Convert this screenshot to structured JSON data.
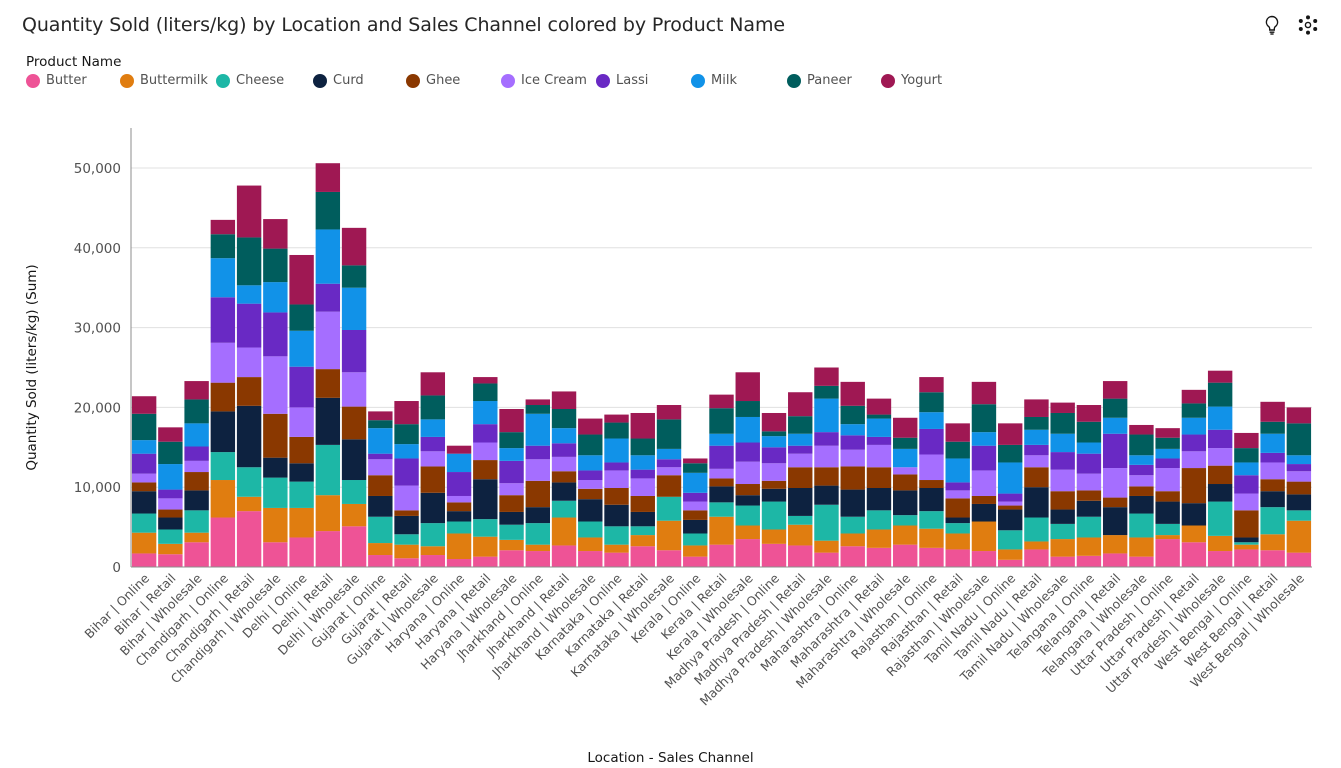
{
  "title": "Quantity Sold (liters/kg) by Location and Sales Channel colored by Product Name",
  "toolbar": {
    "insights_icon": "lightbulb-icon",
    "settings_icon": "network-settings-icon"
  },
  "legend": {
    "title": "Product Name",
    "items": [
      {
        "name": "Butter",
        "color": "#ee5396"
      },
      {
        "name": "Buttermilk",
        "color": "#e07d10"
      },
      {
        "name": "Cheese",
        "color": "#1db7a6"
      },
      {
        "name": "Curd",
        "color": "#0d2240"
      },
      {
        "name": "Ghee",
        "color": "#8a3800"
      },
      {
        "name": "Ice Cream",
        "color": "#a56eff"
      },
      {
        "name": "Lassi",
        "color": "#6929c4"
      },
      {
        "name": "Milk",
        "color": "#1192e8"
      },
      {
        "name": "Paneer",
        "color": "#005d5d"
      },
      {
        "name": "Yogurt",
        "color": "#9f1853"
      }
    ]
  },
  "chart_data": {
    "type": "bar",
    "stacked": true,
    "xlabel": "Location - Sales Channel",
    "ylabel": "Quantity Sold (liters/kg) (Sum)",
    "ylim": [
      0,
      55000
    ],
    "yticks": [
      0,
      10000,
      20000,
      30000,
      40000,
      50000
    ],
    "ytick_labels": [
      "0",
      "10,000",
      "20,000",
      "30,000",
      "40,000",
      "50,000"
    ],
    "grid": true,
    "legend_position": "top-left",
    "categories": [
      "Bihar | Online",
      "Bihar | Retail",
      "Bihar | Wholesale",
      "Chandigarh | Online",
      "Chandigarh | Retail",
      "Chandigarh | Wholesale",
      "Delhi | Online",
      "Delhi | Retail",
      "Delhi | Wholesale",
      "Gujarat | Online",
      "Gujarat | Retail",
      "Gujarat | Wholesale",
      "Haryana | Online",
      "Haryana | Retail",
      "Haryana | Wholesale",
      "Jharkhand | Online",
      "Jharkhand | Retail",
      "Jharkhand | Wholesale",
      "Karnataka | Online",
      "Karnataka | Retail",
      "Karnataka | Wholesale",
      "Kerala | Online",
      "Kerala | Retail",
      "Kerala | Wholesale",
      "Madhya Pradesh | Online",
      "Madhya Pradesh | Retail",
      "Madhya Pradesh | Wholesale",
      "Maharashtra | Online",
      "Maharashtra | Retail",
      "Maharashtra | Wholesale",
      "Rajasthan | Online",
      "Rajasthan | Retail",
      "Rajasthan | Wholesale",
      "Tamil Nadu | Online",
      "Tamil Nadu | Retail",
      "Tamil Nadu | Wholesale",
      "Telangana | Online",
      "Telangana | Retail",
      "Telangana | Wholesale",
      "Uttar Pradesh | Online",
      "Uttar Pradesh | Retail",
      "Uttar Pradesh | Wholesale",
      "West Bengal | Online",
      "West Bengal | Retail",
      "West Bengal | Wholesale"
    ],
    "series": [
      {
        "name": "Butter",
        "values": [
          1700,
          1600,
          3100,
          6200,
          7000,
          3100,
          3700,
          4500,
          5100,
          1500,
          1100,
          1500,
          1000,
          1300,
          2100,
          2000,
          2700,
          2000,
          1800,
          2600,
          2100,
          1300,
          2800,
          3500,
          2900,
          2700,
          1800,
          2600,
          2400,
          2800,
          2400,
          2200,
          2000,
          900,
          2200,
          1300,
          1400,
          1700,
          1300,
          3500,
          3100,
          2000,
          2200,
          2100,
          1800
        ]
      },
      {
        "name": "Buttermilk",
        "values": [
          2600,
          1300,
          1200,
          4700,
          1800,
          4300,
          3700,
          4500,
          2800,
          1500,
          1700,
          1100,
          3200,
          2500,
          1300,
          800,
          3500,
          1700,
          1000,
          1400,
          3700,
          1400,
          3500,
          1700,
          1800,
          2600,
          1500,
          1600,
          2300,
          2400,
          2400,
          2000,
          3700,
          1300,
          1000,
          2200,
          2300,
          2300,
          2400,
          500,
          2100,
          1900,
          600,
          2000,
          4000
        ]
      },
      {
        "name": "Cheese",
        "values": [
          2400,
          1800,
          2800,
          3500,
          3700,
          3800,
          3300,
          6300,
          3000,
          3300,
          1300,
          2900,
          1500,
          2200,
          1900,
          2700,
          2100,
          2000,
          2300,
          1100,
          3000,
          1500,
          1800,
          2500,
          3500,
          1100,
          4500,
          2100,
          2400,
          1300,
          2200,
          1300,
          0,
          2400,
          3000,
          1900,
          2600,
          0,
          3000,
          1400,
          0,
          4300,
          300,
          3400,
          1300
        ]
      },
      {
        "name": "Curd",
        "values": [
          2800,
          1500,
          2500,
          5100,
          7700,
          2500,
          2300,
          5900,
          5100,
          2600,
          2300,
          3800,
          1300,
          5000,
          1600,
          2000,
          2300,
          2800,
          2700,
          1800,
          0,
          1700,
          2000,
          1300,
          1600,
          3500,
          2400,
          3400,
          2800,
          3100,
          2900,
          700,
          2200,
          2600,
          3800,
          1800,
          2000,
          3500,
          2200,
          2800,
          2800,
          2200,
          600,
          2000,
          2000
        ]
      },
      {
        "name": "Ghee",
        "values": [
          1100,
          1000,
          2300,
          3600,
          3600,
          5500,
          3300,
          3600,
          4100,
          2600,
          700,
          3300,
          1100,
          2400,
          2100,
          3300,
          1400,
          1300,
          2100,
          2000,
          2700,
          1200,
          1000,
          1400,
          1000,
          2600,
          2300,
          2900,
          2600,
          2000,
          1000,
          2400,
          1000,
          500,
          2500,
          2300,
          1300,
          1200,
          1200,
          1300,
          4400,
          2300,
          3400,
          1500,
          1600
        ]
      },
      {
        "name": "Ice Cream",
        "values": [
          1100,
          1400,
          1400,
          5000,
          3700,
          7200,
          3700,
          7200,
          4300,
          2000,
          3100,
          1900,
          800,
          2200,
          1500,
          2700,
          1800,
          1100,
          2200,
          2200,
          1000,
          1100,
          1200,
          2800,
          2200,
          1700,
          2700,
          2100,
          2800,
          900,
          3200,
          1000,
          3200,
          500,
          1500,
          2700,
          2100,
          3700,
          1400,
          2900,
          2100,
          2200,
          2100,
          2100,
          1300
        ]
      },
      {
        "name": "Lassi",
        "values": [
          2500,
          1100,
          1800,
          5700,
          5500,
          5500,
          5100,
          3500,
          5300,
          700,
          3400,
          1800,
          3000,
          2300,
          2800,
          1700,
          1700,
          1200,
          1000,
          1100,
          1000,
          1100,
          2900,
          2400,
          2000,
          1000,
          1700,
          1800,
          1000,
          0,
          3200,
          1000,
          3100,
          1000,
          1300,
          2200,
          2500,
          4300,
          1300,
          1200,
          2100,
          2300,
          2300,
          1200,
          900
        ]
      },
      {
        "name": "Milk",
        "values": [
          1700,
          3200,
          2900,
          4900,
          2300,
          3800,
          4500,
          6800,
          5300,
          3200,
          1800,
          2200,
          2300,
          2900,
          1600,
          4000,
          1900,
          1900,
          3000,
          1800,
          1300,
          2500,
          1500,
          3200,
          1400,
          1500,
          4200,
          1400,
          2300,
          2300,
          2100,
          3000,
          1700,
          3900,
          1900,
          2300,
          1400,
          2000,
          1200,
          1200,
          2100,
          2900,
          1600,
          2400,
          1100
        ]
      },
      {
        "name": "Paneer",
        "values": [
          3300,
          2800,
          3000,
          3000,
          6000,
          4200,
          3300,
          4700,
          2800,
          1000,
          2500,
          3000,
          0,
          2200,
          2000,
          1100,
          2400,
          2600,
          2000,
          2100,
          3700,
          1200,
          3200,
          2000,
          600,
          2200,
          1600,
          2300,
          500,
          1400,
          2500,
          2100,
          3500,
          2200,
          1600,
          2600,
          2600,
          2400,
          2600,
          1400,
          1800,
          3000,
          1800,
          1500,
          4000
        ]
      },
      {
        "name": "Yogurt",
        "values": [
          2200,
          1800,
          2300,
          1800,
          6500,
          3700,
          6200,
          3600,
          4700,
          1100,
          2900,
          2900,
          1000,
          800,
          2900,
          700,
          2200,
          2000,
          1000,
          3200,
          1800,
          600,
          1700,
          3600,
          2300,
          3000,
          2300,
          3000,
          2000,
          2500,
          1900,
          2300,
          2800,
          2700,
          2200,
          1300,
          2100,
          2200,
          1200,
          1200,
          1700,
          1500,
          1900,
          2500,
          2000
        ]
      }
    ]
  }
}
